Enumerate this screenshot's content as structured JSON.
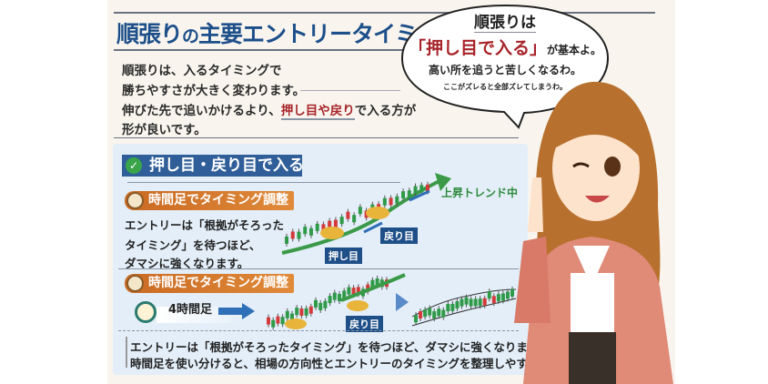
{
  "title": {
    "part1": "順張り",
    "part2": "の",
    "part3": "主要エントリータイミング"
  },
  "intro": {
    "line1": "順張りは、入るタイミングで",
    "line2": "勝ちやすさが大きく変わります。",
    "line3_pre": "伸びた先で追いかけるより、",
    "line3_hl": "押し目や戻り",
    "line3_post": "で入る方が",
    "line4": "形が良いです。"
  },
  "bubble": {
    "line1": "順張りは",
    "line2_hl": "「押し目で入る」",
    "line2_post": "が基本よ。",
    "line3": "高い所を追うと苦しくなるわ。",
    "line4": "ここがズレると全部ズレてしまうわ。"
  },
  "section": {
    "heading": "押し目・戻り目で入る",
    "check_icon": "check-circle-icon",
    "block1": {
      "heading": "時間足でタイミング調整",
      "lines": [
        "エントリーは「根拠がそろった",
        "タイミング」を待つほど、",
        "ダマシに強くなります。"
      ],
      "chart_labels": {
        "pullback": "押し目",
        "retrace": "戻り目",
        "trend": "上昇トレンド中"
      }
    },
    "block2": {
      "heading": "時間足でタイミング調整",
      "timeframe": "4時間足",
      "chart_labels": {
        "retrace": "戻り目"
      }
    },
    "summary": [
      "エントリーは「根拠がそろったタイミング」を待つほど、ダマシに強くなります。",
      "時間足を使い分けると、相場の方向性とエントリーのタイミングを整理しやすいです。"
    ]
  },
  "colors": {
    "title_blue": "#1d4f8a",
    "highlight_red": "#a8242a",
    "trend_green": "#3a9a48",
    "orange": "#d9782e",
    "panel": "#e3eef8"
  }
}
